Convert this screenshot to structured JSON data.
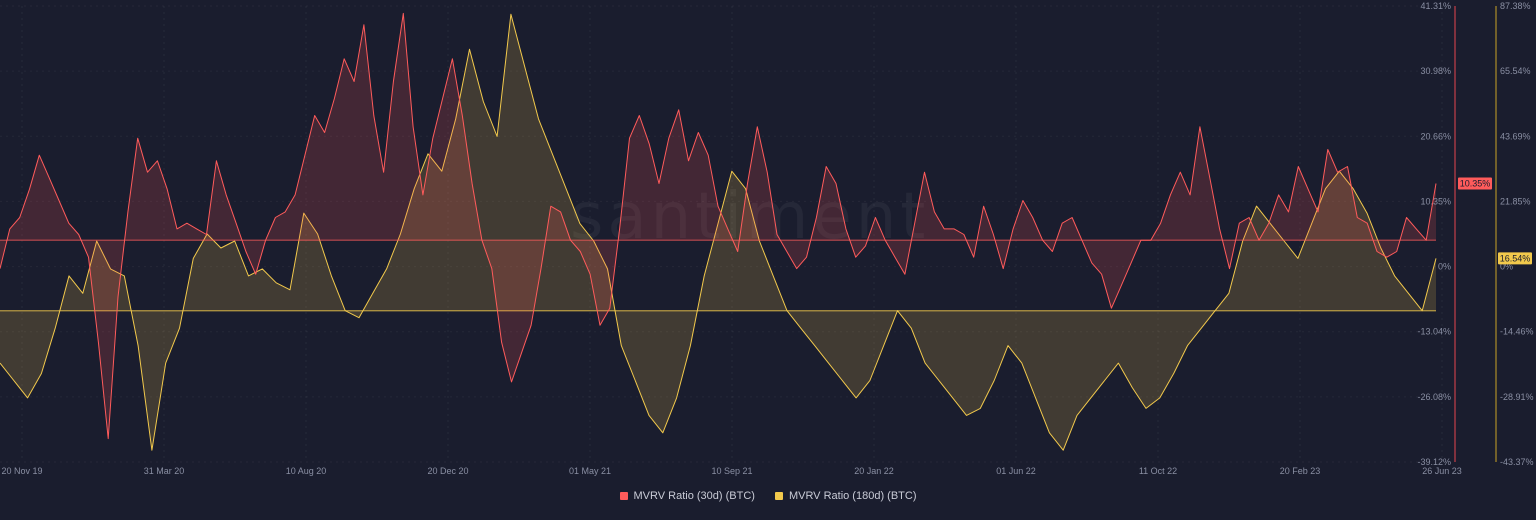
{
  "chart_data": {
    "type": "line",
    "watermark": "santiment",
    "x_tick_labels": [
      "20 Nov 19",
      "31 Mar 20",
      "10 Aug 20",
      "20 Dec 20",
      "01 May 21",
      "10 Sep 21",
      "20 Jan 22",
      "01 Jun 22",
      "11 Oct 22",
      "20 Feb 23",
      "26 Jun 23"
    ],
    "left_axis": {
      "ticks": [
        "41.31%",
        "30.98%",
        "20.66%",
        "10.35%",
        "0%",
        "-13.04%",
        "-26.08%",
        "-39.12%"
      ],
      "range": [
        -39.12,
        41.31
      ],
      "color": "#e5454d"
    },
    "right_axis": {
      "ticks": [
        "87.38%",
        "65.54%",
        "43.69%",
        "21.85%",
        "0%",
        "-14.46%",
        "-28.91%",
        "-43.37%"
      ],
      "range": [
        -43.37,
        87.38
      ],
      "color": "#c9a227"
    },
    "series": [
      {
        "name": "MVRV Ratio (30d) (BTC)",
        "color": "#ff5b5b",
        "axis": "left",
        "current_value": "10.35%",
        "values": [
          -5,
          2,
          4,
          9,
          15,
          11,
          7,
          3,
          1,
          -3,
          -18,
          -35,
          -10,
          5,
          18,
          12,
          14,
          9,
          2,
          3,
          2,
          1,
          14,
          8,
          3,
          -2,
          -6,
          0,
          4,
          5,
          8,
          15,
          22,
          19,
          25,
          32,
          28,
          38,
          22,
          12,
          28,
          40,
          20,
          8,
          18,
          25,
          32,
          22,
          10,
          0,
          -5,
          -18,
          -25,
          -20,
          -15,
          -5,
          6,
          5,
          0,
          -2,
          -6,
          -15,
          -12,
          2,
          18,
          22,
          17,
          10,
          18,
          23,
          14,
          19,
          15,
          6,
          2,
          -2,
          10,
          20,
          12,
          1,
          -2,
          -5,
          -3,
          4,
          13,
          10,
          2,
          -3,
          -1,
          4,
          0,
          -3,
          -6,
          3,
          12,
          5,
          2,
          2,
          1,
          -3,
          6,
          1,
          -5,
          2,
          7,
          4,
          0,
          -2,
          3,
          4,
          0,
          -4,
          -6,
          -12,
          -8,
          -4,
          0,
          0,
          3,
          8,
          12,
          8,
          20,
          11,
          2,
          -5,
          3,
          4,
          0,
          3,
          8,
          5,
          13,
          9,
          5,
          16,
          12,
          13,
          4,
          3,
          -2,
          -3,
          -2,
          4,
          2,
          0,
          10
        ]
      },
      {
        "name": "MVRV Ratio (180d) (BTC)",
        "color": "#f2c94c",
        "axis": "right",
        "current_value": "16.54%",
        "values": [
          -15,
          -20,
          -25,
          -18,
          -5,
          10,
          5,
          20,
          12,
          10,
          -10,
          -40,
          -15,
          -5,
          15,
          22,
          18,
          20,
          10,
          12,
          8,
          6,
          28,
          22,
          10,
          0,
          -2,
          5,
          12,
          22,
          35,
          45,
          40,
          55,
          75,
          60,
          50,
          85,
          70,
          55,
          45,
          35,
          25,
          20,
          12,
          -10,
          -20,
          -30,
          -35,
          -25,
          -10,
          10,
          25,
          40,
          35,
          20,
          10,
          0,
          -5,
          -10,
          -15,
          -20,
          -25,
          -20,
          -10,
          0,
          -5,
          -15,
          -20,
          -25,
          -30,
          -28,
          -20,
          -10,
          -15,
          -25,
          -35,
          -40,
          -30,
          -25,
          -20,
          -15,
          -22,
          -28,
          -25,
          -18,
          -10,
          -5,
          0,
          5,
          20,
          30,
          25,
          20,
          15,
          25,
          35,
          40,
          35,
          28,
          18,
          10,
          5,
          0,
          15
        ]
      }
    ]
  },
  "legend": [
    {
      "label": "MVRV Ratio (30d) (BTC)",
      "color": "#ff5b5b"
    },
    {
      "label": "MVRV Ratio (180d) (BTC)",
      "color": "#f2c94c"
    }
  ]
}
